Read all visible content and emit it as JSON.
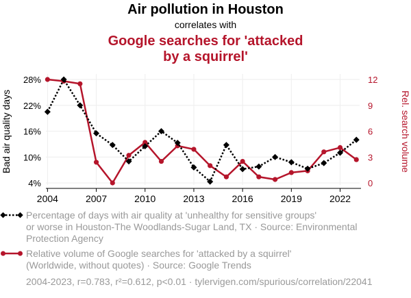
{
  "title": "Air pollution in Houston",
  "subtitle": "correlates with",
  "title2_line1": "Google searches for 'attacked",
  "title2_line2": "by a squirrel'",
  "colors": {
    "black": "#000000",
    "red": "#b5152b",
    "grid": "#eeeeee",
    "note": "#999999"
  },
  "legend": {
    "series1_line1": "Percentage of days with air quality at 'unhealthy for sensitive groups'",
    "series1_line2": "or worse in Houston-The Woodlands-Sugar Land, TX · Source: Environmental",
    "series1_line3": "Protection Agency",
    "series2_line1": "Relative volume of Google searches for 'attacked by a squirrel'",
    "series2_line2": "(Worldwide, without quotes) · Source: Google Trends"
  },
  "footer": "2004-2023, r=0.783, r²=0.612, p<0.01 · tylervigen.com/spurious/correlation/22041",
  "chart_data": {
    "type": "line",
    "x": [
      2004,
      2005,
      2006,
      2007,
      2008,
      2009,
      2010,
      2011,
      2012,
      2013,
      2014,
      2015,
      2016,
      2017,
      2018,
      2019,
      2020,
      2021,
      2022,
      2023
    ],
    "xticks": [
      2004,
      2007,
      2010,
      2013,
      2016,
      2019,
      2022
    ],
    "xtick_labels": [
      "2004",
      "2007",
      "2010",
      "2013",
      "2016",
      "2019",
      "2022"
    ],
    "xlim": [
      2003.9,
      2023.2
    ],
    "ylabel": "Bad air quality days",
    "y2label": "Rel. search volume",
    "yticks": [
      4,
      10,
      16,
      22,
      28
    ],
    "ytick_labels": [
      "4%",
      "10%",
      "16%",
      "22%",
      "28%"
    ],
    "ylim": [
      4,
      28
    ],
    "y2ticks": [
      0,
      3,
      6,
      9,
      12
    ],
    "y2tick_labels": [
      "0",
      "3",
      "6",
      "9",
      "12"
    ],
    "y2lim": [
      0,
      12
    ],
    "series": [
      {
        "name": "Bad air quality days",
        "axis": "left",
        "style": "dotted-diamond",
        "values": [
          20.5,
          28.0,
          22.0,
          15.5,
          12.8,
          9.0,
          12.5,
          16.0,
          13.3,
          7.6,
          4.3,
          12.8,
          7.2,
          7.8,
          10.0,
          8.8,
          7.3,
          8.6,
          11.0,
          14.0
        ]
      },
      {
        "name": "Rel. search volume",
        "axis": "right",
        "style": "solid-circle",
        "values": [
          12.0,
          11.8,
          11.5,
          2.4,
          0.0,
          3.2,
          4.7,
          2.5,
          4.3,
          3.9,
          2.0,
          0.7,
          2.5,
          0.7,
          0.4,
          1.2,
          1.4,
          3.6,
          4.1,
          2.7
        ]
      }
    ]
  }
}
